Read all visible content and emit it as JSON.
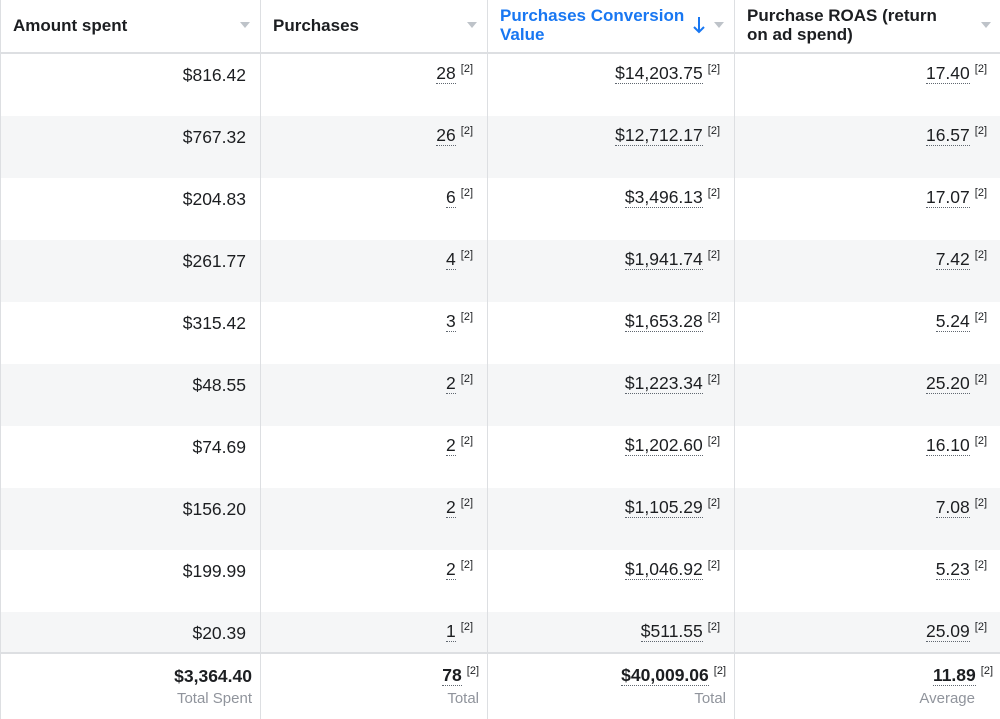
{
  "columns": {
    "amount_spent": "Amount spent",
    "purchases": "Purchases",
    "conversion_value": "Purchases Conversion Value",
    "roas": "Purchase ROAS (return on ad spend)"
  },
  "sort": {
    "column": "conversion_value",
    "direction": "descending",
    "color": "#1877f2"
  },
  "footnote_marker": "[2]",
  "rows": [
    {
      "spent": "$816.42",
      "purchases": "28",
      "value": "$14,203.75",
      "roas": "17.40"
    },
    {
      "spent": "$767.32",
      "purchases": "26",
      "value": "$12,712.17",
      "roas": "16.57"
    },
    {
      "spent": "$204.83",
      "purchases": "6",
      "value": "$3,496.13",
      "roas": "17.07"
    },
    {
      "spent": "$261.77",
      "purchases": "4",
      "value": "$1,941.74",
      "roas": "7.42"
    },
    {
      "spent": "$315.42",
      "purchases": "3",
      "value": "$1,653.28",
      "roas": "5.24"
    },
    {
      "spent": "$48.55",
      "purchases": "2",
      "value": "$1,223.34",
      "roas": "25.20"
    },
    {
      "spent": "$74.69",
      "purchases": "2",
      "value": "$1,202.60",
      "roas": "16.10"
    },
    {
      "spent": "$156.20",
      "purchases": "2",
      "value": "$1,105.29",
      "roas": "7.08"
    },
    {
      "spent": "$199.99",
      "purchases": "2",
      "value": "$1,046.92",
      "roas": "5.23"
    },
    {
      "spent": "$20.39",
      "purchases": "1",
      "value": "$511.55",
      "roas": "25.09"
    }
  ],
  "totals": {
    "spent": {
      "value": "$3,364.40",
      "label": "Total Spent"
    },
    "purchases": {
      "value": "78",
      "label": "Total"
    },
    "value": {
      "value": "$40,009.06",
      "label": "Total"
    },
    "roas": {
      "value": "11.89",
      "label": "Average"
    }
  }
}
